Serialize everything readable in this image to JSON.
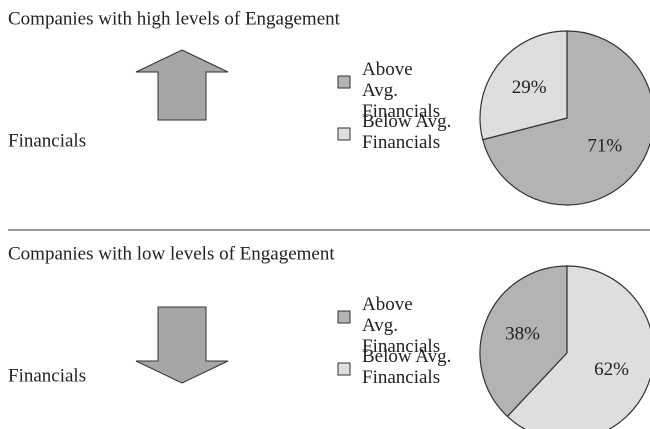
{
  "chart_data": [
    {
      "type": "pie",
      "title": "Companies with high levels of Engagement",
      "label": "Financials",
      "arrow": "up",
      "categories": [
        "Above Avg. Financials",
        "Below Avg. Financials"
      ],
      "values": [
        71,
        29
      ],
      "value_labels": [
        "71%",
        "29%"
      ],
      "colors": [
        "#b3b3b3",
        "#dedede"
      ],
      "direction": "clockwise"
    },
    {
      "type": "pie",
      "title": "Companies with low levels of Engagement",
      "label": "Financials",
      "arrow": "down",
      "categories": [
        "Above Avg. Financials",
        "Below Avg. Financials"
      ],
      "values": [
        38,
        62
      ],
      "value_labels": [
        "38%",
        "62%"
      ],
      "colors": [
        "#b3b3b3",
        "#dedede"
      ],
      "direction": "counterclockwise"
    }
  ]
}
